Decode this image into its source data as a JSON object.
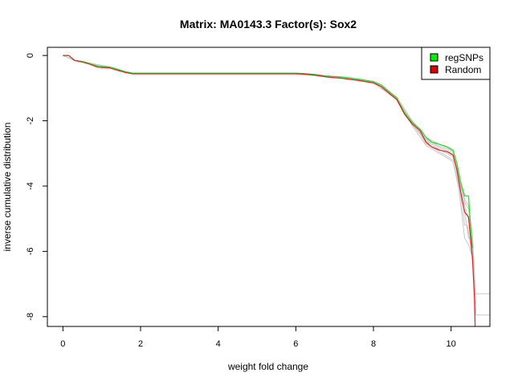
{
  "chart_data": {
    "type": "line",
    "title": "Matrix: MA0143.3 Factor(s): Sox2",
    "xlabel": "weight fold change",
    "ylabel": "inverse cumulative distribution",
    "xlim": [
      -0.4,
      11
    ],
    "ylim": [
      -8.3,
      0.25
    ],
    "x_ticks": [
      "0",
      "2",
      "4",
      "6",
      "8",
      "10"
    ],
    "y_ticks": [
      "0",
      "-2",
      "-4",
      "-6",
      "-8"
    ],
    "grid": false,
    "legend_position": "top-right",
    "legend": [
      {
        "label": "regSNPs",
        "color": "#00ee00"
      },
      {
        "label": "Random",
        "color": "#dd0000"
      }
    ],
    "series": [
      {
        "name": "regSNPs",
        "color": "#22dd22",
        "points": [
          [
            0,
            0
          ],
          [
            0.15,
            0
          ],
          [
            0.2,
            -0.05
          ],
          [
            0.3,
            -0.15
          ],
          [
            0.5,
            -0.18
          ],
          [
            0.7,
            -0.25
          ],
          [
            0.9,
            -0.33
          ],
          [
            1.2,
            -0.35
          ],
          [
            1.4,
            -0.42
          ],
          [
            1.6,
            -0.5
          ],
          [
            1.8,
            -0.54
          ],
          [
            6.0,
            -0.54
          ],
          [
            6.2,
            -0.55
          ],
          [
            6.5,
            -0.58
          ],
          [
            6.8,
            -0.63
          ],
          [
            7.2,
            -0.66
          ],
          [
            7.6,
            -0.72
          ],
          [
            8.0,
            -0.8
          ],
          [
            8.2,
            -0.9
          ],
          [
            8.4,
            -1.1
          ],
          [
            8.6,
            -1.3
          ],
          [
            8.8,
            -1.75
          ],
          [
            9.0,
            -2.05
          ],
          [
            9.2,
            -2.25
          ],
          [
            9.35,
            -2.5
          ],
          [
            9.5,
            -2.65
          ],
          [
            9.7,
            -2.72
          ],
          [
            9.9,
            -2.8
          ],
          [
            10.05,
            -2.9
          ],
          [
            10.15,
            -3.3
          ],
          [
            10.25,
            -3.9
          ],
          [
            10.35,
            -4.3
          ],
          [
            10.45,
            -4.3
          ],
          [
            10.5,
            -5.2
          ],
          [
            10.55,
            -5.9
          ]
        ]
      },
      {
        "name": "Random",
        "color": "#dd2222",
        "points": [
          [
            0,
            0
          ],
          [
            0.15,
            0
          ],
          [
            0.2,
            -0.05
          ],
          [
            0.3,
            -0.15
          ],
          [
            0.5,
            -0.2
          ],
          [
            0.7,
            -0.27
          ],
          [
            0.9,
            -0.36
          ],
          [
            1.2,
            -0.38
          ],
          [
            1.4,
            -0.45
          ],
          [
            1.6,
            -0.52
          ],
          [
            1.8,
            -0.56
          ],
          [
            6.0,
            -0.56
          ],
          [
            6.2,
            -0.57
          ],
          [
            6.5,
            -0.6
          ],
          [
            6.8,
            -0.66
          ],
          [
            7.2,
            -0.7
          ],
          [
            7.6,
            -0.76
          ],
          [
            8.0,
            -0.84
          ],
          [
            8.2,
            -0.95
          ],
          [
            8.4,
            -1.15
          ],
          [
            8.6,
            -1.35
          ],
          [
            8.8,
            -1.8
          ],
          [
            9.0,
            -2.1
          ],
          [
            9.2,
            -2.3
          ],
          [
            9.35,
            -2.65
          ],
          [
            9.5,
            -2.8
          ],
          [
            9.7,
            -2.9
          ],
          [
            9.9,
            -2.95
          ],
          [
            10.05,
            -3.05
          ],
          [
            10.15,
            -3.5
          ],
          [
            10.25,
            -4.2
          ],
          [
            10.35,
            -4.8
          ],
          [
            10.45,
            -4.95
          ],
          [
            10.55,
            -6.2
          ],
          [
            10.6,
            -7.4
          ],
          [
            10.62,
            -8.3
          ]
        ]
      }
    ],
    "background_runs": {
      "color": "#c8c8c8",
      "lines": [
        [
          [
            0,
            0
          ],
          [
            0.3,
            -0.14
          ],
          [
            1.2,
            -0.36
          ],
          [
            1.8,
            -0.55
          ],
          [
            6.0,
            -0.55
          ],
          [
            7.2,
            -0.68
          ],
          [
            8.0,
            -0.82
          ],
          [
            8.6,
            -1.32
          ],
          [
            9.0,
            -2.08
          ],
          [
            9.35,
            -2.58
          ],
          [
            9.7,
            -2.82
          ],
          [
            10.05,
            -3.0
          ],
          [
            10.2,
            -3.8
          ],
          [
            10.35,
            -4.5
          ],
          [
            10.45,
            -4.7
          ],
          [
            10.55,
            -5.8
          ],
          [
            10.62,
            -7.0
          ],
          [
            10.64,
            -7.95
          ],
          [
            11.0,
            -7.95
          ]
        ],
        [
          [
            0,
            0
          ],
          [
            0.3,
            -0.16
          ],
          [
            1.2,
            -0.37
          ],
          [
            1.8,
            -0.56
          ],
          [
            6.0,
            -0.56
          ],
          [
            7.2,
            -0.69
          ],
          [
            8.0,
            -0.83
          ],
          [
            8.6,
            -1.34
          ],
          [
            9.0,
            -2.12
          ],
          [
            9.35,
            -2.62
          ],
          [
            9.7,
            -2.88
          ],
          [
            10.05,
            -3.1
          ],
          [
            10.2,
            -3.6
          ],
          [
            10.35,
            -4.6
          ],
          [
            10.45,
            -5.0
          ],
          [
            10.55,
            -6.0
          ],
          [
            10.62,
            -7.3
          ],
          [
            11.0,
            -7.3
          ]
        ],
        [
          [
            0,
            0
          ],
          [
            0.3,
            -0.15
          ],
          [
            1.2,
            -0.35
          ],
          [
            1.8,
            -0.55
          ],
          [
            6.0,
            -0.55
          ],
          [
            7.2,
            -0.67
          ],
          [
            8.0,
            -0.8
          ],
          [
            8.6,
            -1.28
          ],
          [
            9.0,
            -2.02
          ],
          [
            9.35,
            -2.7
          ],
          [
            9.7,
            -2.95
          ],
          [
            10.05,
            -3.2
          ],
          [
            10.2,
            -4.0
          ],
          [
            10.35,
            -4.8
          ],
          [
            10.45,
            -5.6
          ],
          [
            10.52,
            -5.6
          ],
          [
            10.58,
            -6.5
          ],
          [
            10.63,
            -7.8
          ]
        ],
        [
          [
            0,
            0
          ],
          [
            0.3,
            -0.15
          ],
          [
            1.2,
            -0.36
          ],
          [
            1.8,
            -0.55
          ],
          [
            6.0,
            -0.55
          ],
          [
            7.2,
            -0.68
          ],
          [
            8.0,
            -0.81
          ],
          [
            8.6,
            -1.3
          ],
          [
            9.0,
            -2.0
          ],
          [
            9.35,
            -2.55
          ],
          [
            9.7,
            -2.78
          ],
          [
            10.05,
            -2.95
          ],
          [
            10.2,
            -3.9
          ],
          [
            10.35,
            -5.2
          ],
          [
            10.42,
            -5.2
          ],
          [
            10.5,
            -5.8
          ],
          [
            10.6,
            -6.8
          ],
          [
            10.64,
            -7.6
          ]
        ],
        [
          [
            0,
            0
          ],
          [
            0.3,
            -0.15
          ],
          [
            1.2,
            -0.37
          ],
          [
            1.8,
            -0.56
          ],
          [
            6.0,
            -0.56
          ],
          [
            7.2,
            -0.7
          ],
          [
            8.0,
            -0.84
          ],
          [
            8.6,
            -1.36
          ],
          [
            9.0,
            -2.15
          ],
          [
            9.35,
            -2.75
          ],
          [
            9.7,
            -3.0
          ],
          [
            10.05,
            -3.25
          ],
          [
            10.2,
            -4.1
          ],
          [
            10.35,
            -5.6
          ],
          [
            10.45,
            -5.8
          ],
          [
            10.55,
            -6.2
          ],
          [
            10.62,
            -7.2
          ]
        ],
        [
          [
            0,
            0
          ],
          [
            0.3,
            -0.14
          ],
          [
            1.2,
            -0.35
          ],
          [
            1.8,
            -0.54
          ],
          [
            6.0,
            -0.54
          ],
          [
            7.2,
            -0.66
          ],
          [
            8.0,
            -0.79
          ],
          [
            8.6,
            -1.27
          ],
          [
            9.0,
            -2.0
          ],
          [
            9.35,
            -2.5
          ],
          [
            9.7,
            -2.72
          ],
          [
            10.05,
            -2.92
          ],
          [
            10.2,
            -3.7
          ],
          [
            10.35,
            -4.4
          ],
          [
            10.45,
            -4.6
          ],
          [
            10.55,
            -5.5
          ],
          [
            10.6,
            -6.6
          ],
          [
            10.62,
            -7.95
          ]
        ]
      ]
    }
  }
}
